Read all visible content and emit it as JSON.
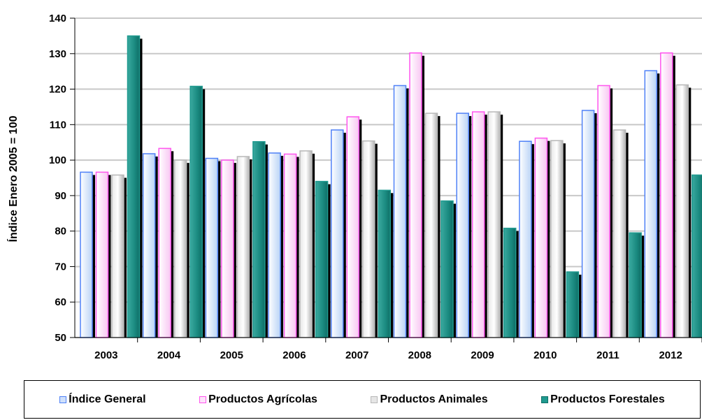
{
  "chart_data": {
    "type": "bar",
    "title": "",
    "xlabel": "",
    "ylabel": "Índice Enero 2005 = 100",
    "ylim": [
      50,
      140
    ],
    "yticks": [
      50,
      60,
      70,
      80,
      90,
      100,
      110,
      120,
      130,
      140
    ],
    "grid": true,
    "legend_position": "bottom",
    "categories": [
      "2003",
      "2004",
      "2005",
      "2006",
      "2007",
      "2008",
      "2009",
      "2010",
      "2011",
      "2012"
    ],
    "series": [
      {
        "name": "Índice General",
        "color": "#4f81f7",
        "values": [
          96.6,
          101.8,
          100.5,
          102.0,
          108.5,
          121.0,
          113.2,
          105.3,
          114.0,
          125.2
        ]
      },
      {
        "name": "Productos Agrícolas",
        "color": "#ff55ee",
        "values": [
          96.6,
          103.3,
          100.0,
          101.7,
          112.2,
          130.2,
          113.6,
          106.2,
          121.0,
          130.2
        ]
      },
      {
        "name": "Productos Animales",
        "color": "#b8b8b8",
        "values": [
          95.8,
          100.0,
          101.0,
          102.6,
          105.4,
          113.2,
          113.6,
          105.5,
          108.5,
          121.2
        ]
      },
      {
        "name": "Productos Forestales",
        "color": "#1f9a8f",
        "values": [
          135.0,
          120.8,
          105.2,
          94.0,
          91.5,
          88.5,
          80.8,
          68.5,
          79.5,
          95.8
        ]
      }
    ]
  }
}
